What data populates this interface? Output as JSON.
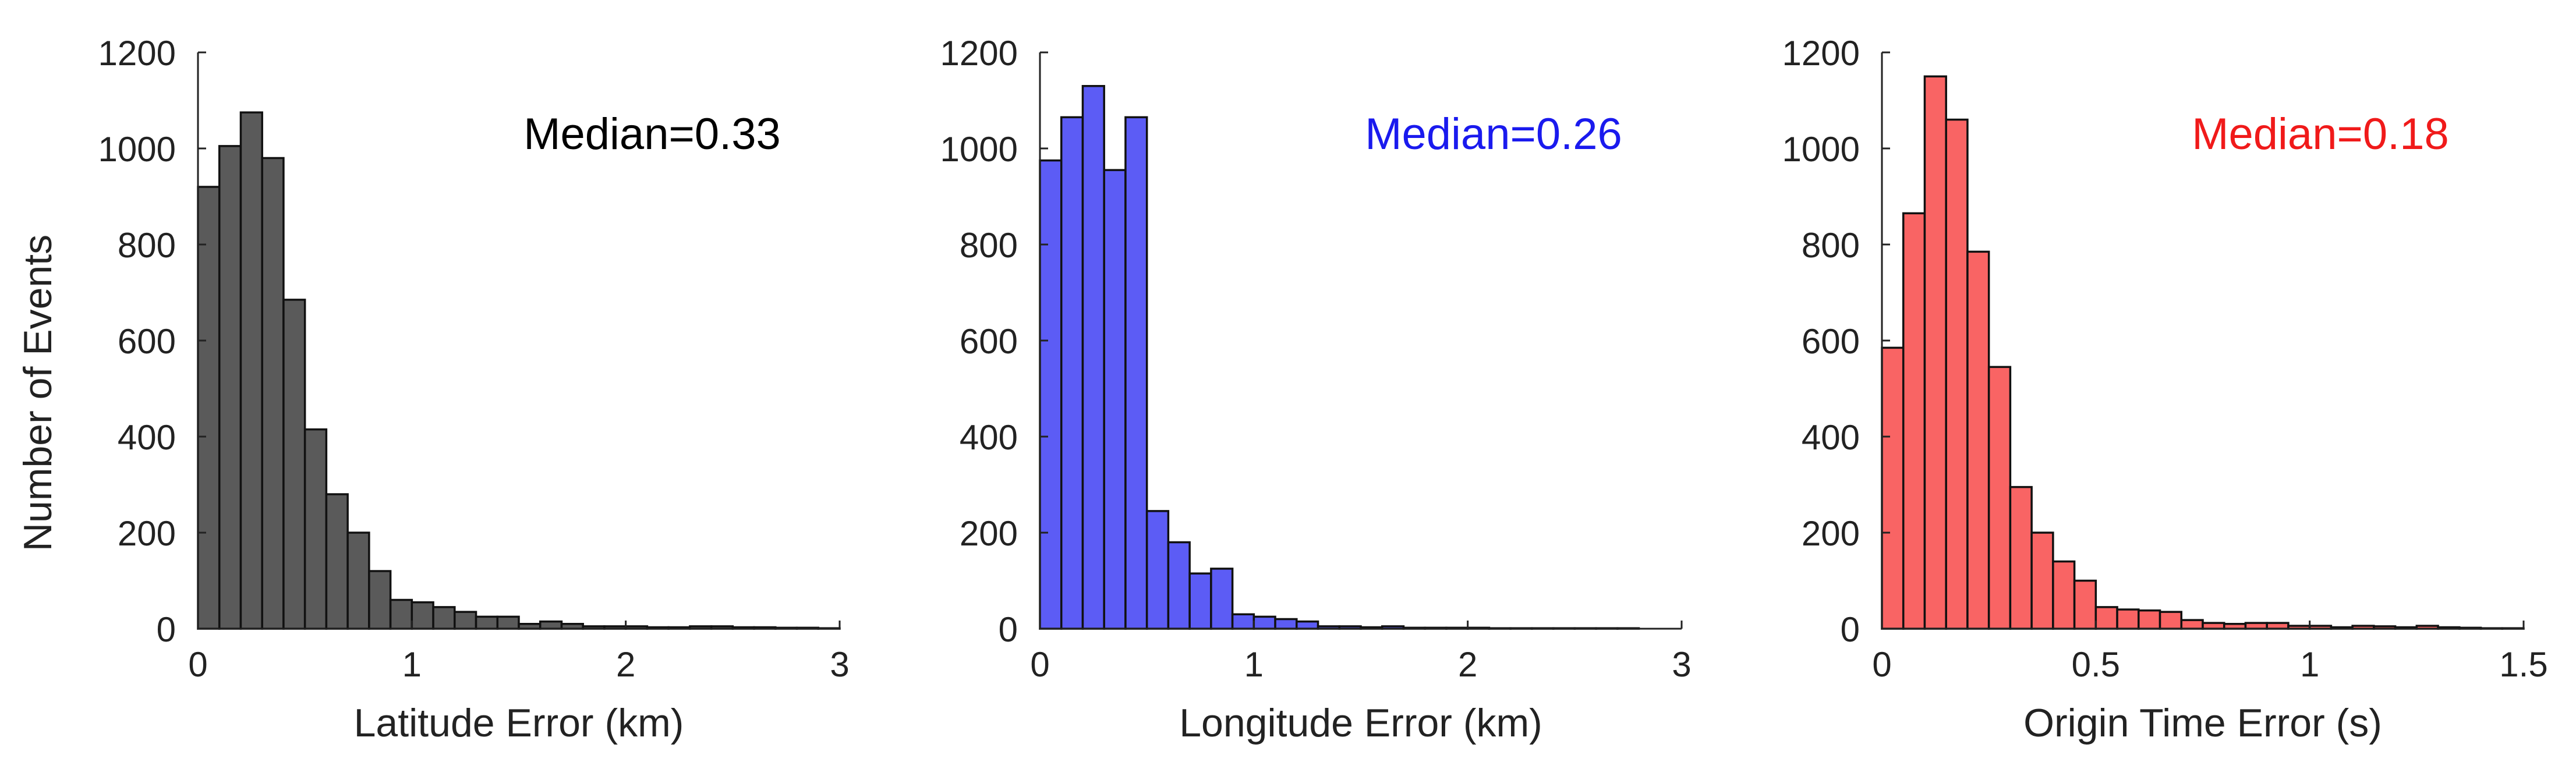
{
  "figure": {
    "ylabel": "Number of Events"
  },
  "chart_data": [
    {
      "type": "bar",
      "title": "",
      "xlabel": "Latitude Error (km)",
      "ylabel": "Number of Events",
      "xlim": [
        0,
        3
      ],
      "ylim": [
        0,
        1200
      ],
      "xticks": [
        "0",
        "1",
        "2",
        "3"
      ],
      "yticks": [
        "0",
        "200",
        "400",
        "600",
        "800",
        "1000",
        "1200"
      ],
      "bin_width": 0.1,
      "values": [
        920,
        1005,
        1075,
        980,
        685,
        415,
        280,
        200,
        120,
        60,
        55,
        45,
        35,
        25,
        25,
        10,
        15,
        10,
        5,
        5,
        5,
        3,
        3,
        5,
        5,
        3,
        3,
        2,
        2,
        1
      ],
      "color": "#5a5a5a",
      "annotation": "Median=0.33",
      "annotation_color": "#000000",
      "grid": false
    },
    {
      "type": "bar",
      "title": "",
      "xlabel": "Longitude Error (km)",
      "ylabel": "",
      "xlim": [
        0,
        3
      ],
      "ylim": [
        0,
        1200
      ],
      "xticks": [
        "0",
        "1",
        "2",
        "3"
      ],
      "yticks": [
        "0",
        "200",
        "400",
        "600",
        "800",
        "1000",
        "1200"
      ],
      "bin_width": 0.1,
      "values": [
        975,
        1065,
        1130,
        955,
        1065,
        245,
        180,
        115,
        125,
        30,
        25,
        20,
        15,
        5,
        5,
        3,
        5,
        2,
        2,
        2,
        2,
        1,
        1,
        1,
        1,
        1,
        1,
        1,
        0,
        0
      ],
      "color": "#5c5cf5",
      "annotation": "Median=0.26",
      "annotation_color": "#1a1aee",
      "grid": false
    },
    {
      "type": "bar",
      "title": "",
      "xlabel": "Origin Time Error (s)",
      "ylabel": "",
      "xlim": [
        0,
        1.5
      ],
      "ylim": [
        0,
        1200
      ],
      "xticks": [
        "0",
        "0.5",
        "1",
        "1.5"
      ],
      "yticks": [
        "0",
        "200",
        "400",
        "600",
        "800",
        "1000",
        "1200"
      ],
      "bin_width": 0.05,
      "values": [
        585,
        865,
        1150,
        1060,
        785,
        545,
        295,
        200,
        140,
        100,
        45,
        40,
        38,
        35,
        18,
        12,
        10,
        12,
        12,
        6,
        6,
        3,
        6,
        5,
        3,
        6,
        3,
        2,
        1,
        1
      ],
      "color": "#f96464",
      "annotation": "Median=0.18",
      "annotation_color": "#f01a1a",
      "grid": false
    }
  ]
}
